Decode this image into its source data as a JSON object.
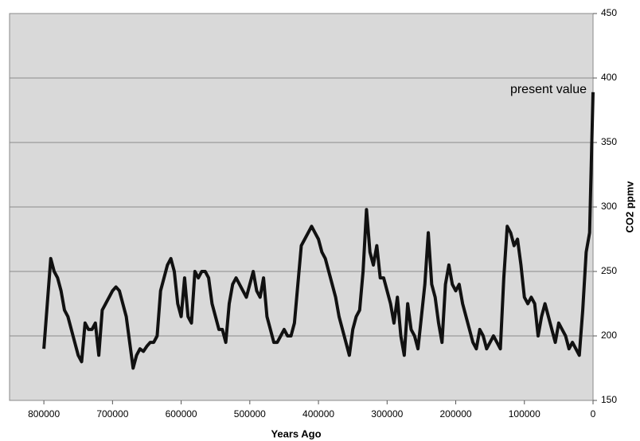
{
  "chart_data": {
    "type": "line",
    "xlabel": "Years Ago",
    "ylabel": "CO2 ppmv",
    "annotation": "present value",
    "x": [
      800000,
      795000,
      790000,
      785000,
      780000,
      775000,
      770000,
      765000,
      760000,
      755000,
      750000,
      745000,
      740000,
      735000,
      730000,
      725000,
      720000,
      715000,
      710000,
      705000,
      700000,
      695000,
      690000,
      685000,
      680000,
      675000,
      670000,
      665000,
      660000,
      655000,
      650000,
      645000,
      640000,
      635000,
      630000,
      625000,
      620000,
      615000,
      610000,
      605000,
      600000,
      595000,
      590000,
      585000,
      580000,
      575000,
      570000,
      565000,
      560000,
      555000,
      550000,
      545000,
      540000,
      535000,
      530000,
      525000,
      520000,
      515000,
      510000,
      505000,
      500000,
      495000,
      490000,
      485000,
      480000,
      475000,
      470000,
      465000,
      460000,
      455000,
      450000,
      445000,
      440000,
      435000,
      430000,
      425000,
      420000,
      415000,
      410000,
      405000,
      400000,
      395000,
      390000,
      385000,
      380000,
      375000,
      370000,
      365000,
      360000,
      355000,
      350000,
      345000,
      340000,
      335000,
      330000,
      325000,
      320000,
      315000,
      310000,
      305000,
      300000,
      295000,
      290000,
      285000,
      280000,
      275000,
      270000,
      265000,
      260000,
      255000,
      250000,
      245000,
      240000,
      235000,
      230000,
      225000,
      220000,
      215000,
      210000,
      205000,
      200000,
      195000,
      190000,
      185000,
      180000,
      175000,
      170000,
      165000,
      160000,
      155000,
      150000,
      145000,
      140000,
      135000,
      130000,
      125000,
      120000,
      115000,
      110000,
      105000,
      100000,
      95000,
      90000,
      85000,
      80000,
      75000,
      70000,
      65000,
      60000,
      55000,
      50000,
      45000,
      40000,
      35000,
      30000,
      25000,
      20000,
      15000,
      10000,
      5000,
      0
    ],
    "values": [
      190,
      225,
      260,
      250,
      245,
      235,
      220,
      215,
      205,
      195,
      185,
      180,
      210,
      205,
      205,
      210,
      185,
      220,
      225,
      230,
      235,
      238,
      235,
      225,
      215,
      195,
      175,
      185,
      190,
      188,
      192,
      195,
      195,
      200,
      235,
      245,
      255,
      260,
      250,
      225,
      215,
      245,
      215,
      210,
      250,
      245,
      250,
      250,
      245,
      225,
      215,
      205,
      205,
      195,
      225,
      240,
      245,
      240,
      235,
      230,
      240,
      250,
      235,
      230,
      245,
      215,
      205,
      195,
      195,
      200,
      205,
      200,
      200,
      210,
      240,
      270,
      275,
      280,
      285,
      280,
      275,
      265,
      260,
      250,
      240,
      230,
      215,
      205,
      195,
      185,
      205,
      215,
      220,
      250,
      298,
      265,
      255,
      270,
      245,
      245,
      235,
      225,
      210,
      230,
      200,
      185,
      225,
      205,
      200,
      190,
      215,
      240,
      280,
      240,
      230,
      210,
      195,
      240,
      255,
      240,
      235,
      240,
      225,
      215,
      205,
      195,
      190,
      205,
      200,
      190,
      195,
      200,
      195,
      190,
      245,
      285,
      280,
      270,
      275,
      255,
      230,
      225,
      230,
      225,
      200,
      215,
      225,
      215,
      205,
      195,
      210,
      205,
      200,
      190,
      195,
      190,
      185,
      220,
      265,
      280,
      389
    ],
    "color": "#111111",
    "xlim": [
      850000,
      0
    ],
    "xticks": [
      800000,
      700000,
      600000,
      500000,
      400000,
      300000,
      200000,
      100000,
      0
    ],
    "ylim": [
      150,
      450
    ],
    "yticks": [
      150,
      200,
      250,
      300,
      350,
      400,
      450
    ],
    "grid": true
  }
}
